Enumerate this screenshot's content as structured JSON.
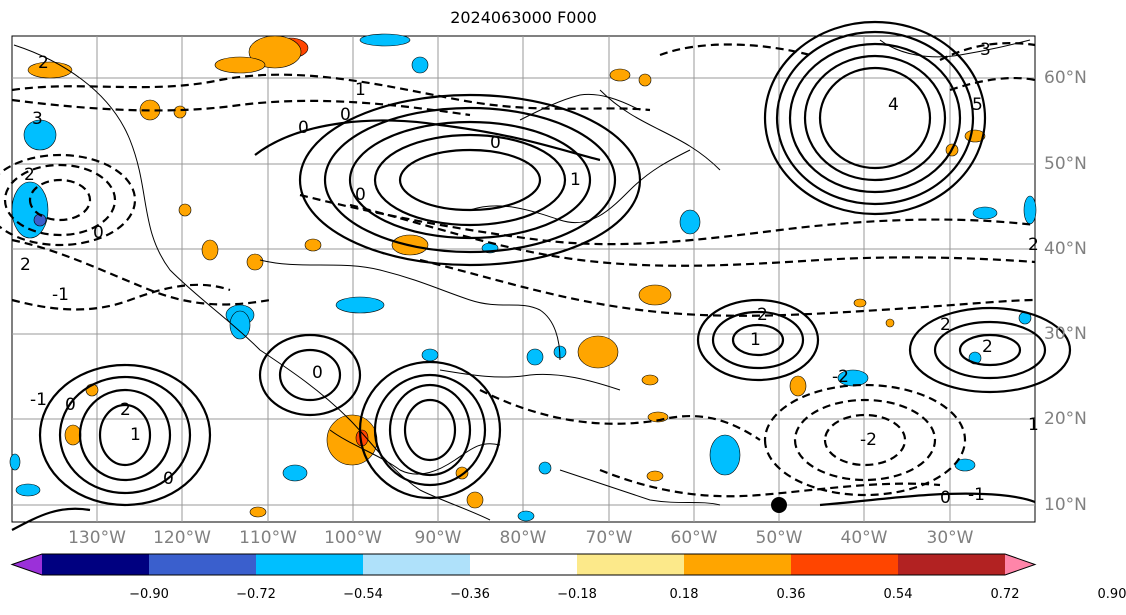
{
  "title": "2024063000 F000",
  "map": {
    "longitude_labels": [
      "130°W",
      "120°W",
      "110°W",
      "100°W",
      "90°W",
      "80°W",
      "70°W",
      "60°W",
      "50°W",
      "40°W",
      "30°W"
    ],
    "latitude_labels": [
      "60°N",
      "50°N",
      "40°N",
      "30°N",
      "20°N",
      "10°N"
    ],
    "contour_labels": [
      "2",
      "0",
      "1",
      "3",
      "-1",
      "0",
      "2",
      "0",
      "0",
      "5",
      "4",
      "3",
      "2",
      "1",
      "0",
      "2",
      "-2",
      "-1",
      "0",
      "2",
      "1",
      "0",
      "2",
      "-2",
      "1",
      "2",
      "0",
      "1",
      "-1",
      "2",
      "0"
    ]
  },
  "colorbar": {
    "ticks": [
      "−0.90",
      "−0.72",
      "−0.54",
      "−0.36",
      "−0.18",
      "0.18",
      "0.36",
      "0.54",
      "0.72",
      "0.90"
    ],
    "colors": [
      "#9b30d9",
      "#000080",
      "#3a5fcd",
      "#00bfff",
      "#afe1fa",
      "#ffffff",
      "#fce98a",
      "#ffa500",
      "#ff4500",
      "#b22222",
      "#ff85a9"
    ]
  },
  "shading_colors": {
    "neg_light": "#00bfff",
    "neg_mid": "#3a5fcd",
    "pos_light": "#ffa500",
    "pos_mid": "#ff4500"
  }
}
